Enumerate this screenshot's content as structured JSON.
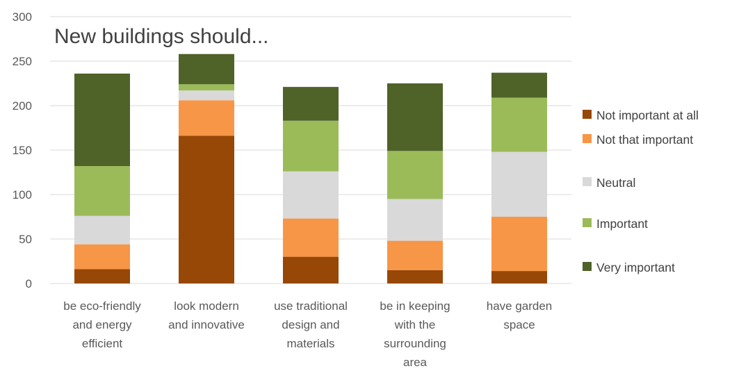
{
  "chart_data": {
    "type": "bar",
    "stacked": true,
    "title": "New buildings should...",
    "xlabel": "",
    "ylabel": "",
    "ylim": [
      0,
      300
    ],
    "yticks": [
      0,
      50,
      100,
      150,
      200,
      250,
      300
    ],
    "grid": true,
    "legend_position": "right",
    "categories": [
      [
        "be eco-friendly",
        "and energy",
        "efficient"
      ],
      [
        "look modern",
        "and innovative"
      ],
      [
        "use traditional",
        "design and",
        "materials"
      ],
      [
        "be in keeping",
        "with the",
        "surrounding",
        "area"
      ],
      [
        "have garden",
        "space"
      ]
    ],
    "series": [
      {
        "name": "Not important at all",
        "color": "#974706",
        "values": [
          16,
          166,
          30,
          15,
          14
        ]
      },
      {
        "name": "Not that important",
        "color": "#f79646",
        "values": [
          28,
          40,
          43,
          33,
          61
        ]
      },
      {
        "name": "Neutral",
        "color": "#d9d9d9",
        "values": [
          32,
          11,
          53,
          47,
          73
        ]
      },
      {
        "name": "Important",
        "color": "#9bbb59",
        "values": [
          56,
          7,
          57,
          54,
          61
        ]
      },
      {
        "name": "Very important",
        "color": "#4f6228",
        "values": [
          104,
          34,
          38,
          76,
          28
        ]
      }
    ]
  }
}
